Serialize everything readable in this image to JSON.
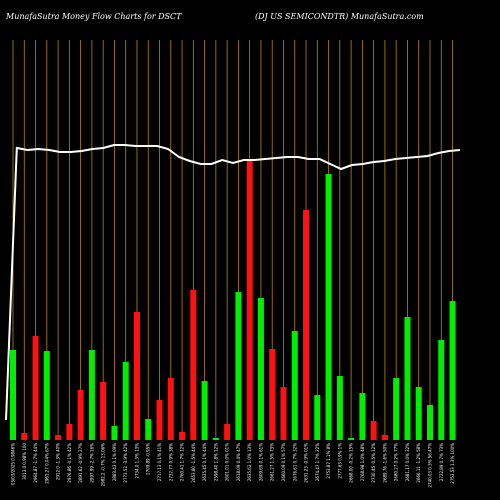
{
  "header": {
    "left_title": "MunafaSutra  Money Flow  Charts for DSCT",
    "right_title": "(DJ US SEMICONDTR) MunafaSutra.com"
  },
  "chart_data": {
    "type": "bar",
    "title": "MunafaSutra  Money Flow  Charts for DSCT",
    "subtitle": "(DJ US SEMICONDTR) MunafaSutra.com",
    "grid": true,
    "colors": {
      "up": "#00ee00",
      "down": "#ff1111",
      "grid": "#b8860b",
      "line": "#ffffff",
      "background": "#000000"
    },
    "bars": [
      {
        "label": "03/03/2025 0.9846%",
        "value": 90,
        "direction": "up"
      },
      {
        "label": "3013.0 0.98% 100",
        "value": 7,
        "direction": "down"
      },
      {
        "label": "2964.87 -1.7% 44%",
        "value": 104,
        "direction": "down"
      },
      {
        "label": "2961.27 0.04% 67%",
        "value": 89,
        "direction": "up"
      },
      {
        "label": "2912.0 -1.3% 40%",
        "value": 5,
        "direction": "down"
      },
      {
        "label": "2976.86 -0.1% 42%",
        "value": 16,
        "direction": "down"
      },
      {
        "label": "2891.62 -0.9% 27%",
        "value": 50,
        "direction": "down"
      },
      {
        "label": "2997.99 -2.7% 16%",
        "value": 90,
        "direction": "up"
      },
      {
        "label": "2982.2 -0.7% 13.06%",
        "value": 58,
        "direction": "down"
      },
      {
        "label": "2883.43 0.1% 09%",
        "value": 14,
        "direction": "up"
      },
      {
        "label": "2773.52 -3.9% 42%",
        "value": 78,
        "direction": "up"
      },
      {
        "label": "2734.0 1.3% 13%",
        "value": 128,
        "direction": "down"
      },
      {
        "label": "2709.89 -0.95%",
        "value": 21,
        "direction": "up"
      },
      {
        "label": "2717.13 0.1% 41%",
        "value": 40,
        "direction": "down"
      },
      {
        "label": "2732.77 0.9% 38%",
        "value": 62,
        "direction": "down"
      },
      {
        "label": "2760.41 1.7% 12%",
        "value": 8,
        "direction": "down"
      },
      {
        "label": "2653.80 -1.5% 44%",
        "value": 150,
        "direction": "down"
      },
      {
        "label": "2635.45 0.1% 44%",
        "value": 59,
        "direction": "up"
      },
      {
        "label": "2598.40 1.8% 12%",
        "value": 2,
        "direction": "up"
      },
      {
        "label": "2601.01 0.0% 01%",
        "value": 16,
        "direction": "down"
      },
      {
        "label": "2618.09 0.4% 47%",
        "value": 148,
        "direction": "up"
      },
      {
        "label": "2635.62 1.0% 13%",
        "value": 280,
        "direction": "down"
      },
      {
        "label": "2609.69 0.1% 61%",
        "value": 142,
        "direction": "up"
      },
      {
        "label": "2661.27 1.5% 73%",
        "value": 91,
        "direction": "down"
      },
      {
        "label": "2660.09 0.1% 57%",
        "value": 53,
        "direction": "down"
      },
      {
        "label": "2676.61 0.7% 32%",
        "value": 109,
        "direction": "up"
      },
      {
        "label": "2631.23 -0.9% 01%",
        "value": 230,
        "direction": "down"
      },
      {
        "label": "2674.47 1.7% 22%",
        "value": 45,
        "direction": "up"
      },
      {
        "label": "2753.87 1.1% 8%",
        "value": 266,
        "direction": "up"
      },
      {
        "label": "2777.63 0.9% 1%",
        "value": 64,
        "direction": "up"
      },
      {
        "label": "2668.00 -0.2% 15%",
        "value": 2,
        "direction": "up"
      },
      {
        "label": "2768.98 1.0% 48%",
        "value": 47,
        "direction": "up"
      },
      {
        "label": "2730.45 -0.5% 12%",
        "value": 19,
        "direction": "down"
      },
      {
        "label": "2689.76 -1.6% 50%",
        "value": 5,
        "direction": "down"
      },
      {
        "label": "2680.27 0.2% 77%",
        "value": 62,
        "direction": "up"
      },
      {
        "label": "2681.17 0.0% 32%",
        "value": 123,
        "direction": "up"
      },
      {
        "label": "2666.11 -1.2% 58%",
        "value": 53,
        "direction": "up"
      },
      {
        "label": "2740.03 0.3% 56.47%",
        "value": 35,
        "direction": "up"
      },
      {
        "label": "2722.89 0.7% 73%",
        "value": 100,
        "direction": "up"
      },
      {
        "label": "2753.53 1.3% 100%",
        "value": 139,
        "direction": "up"
      }
    ],
    "price_line": [
      20,
      292,
      290,
      291,
      290,
      288,
      288,
      289,
      291,
      292,
      295,
      295,
      294,
      294,
      294,
      291,
      283,
      279,
      276,
      276,
      280,
      277,
      280,
      280,
      281,
      282,
      283,
      283,
      281,
      281,
      276,
      271,
      275,
      276,
      278,
      279,
      281,
      282,
      283,
      284,
      287,
      289,
      290
    ]
  }
}
